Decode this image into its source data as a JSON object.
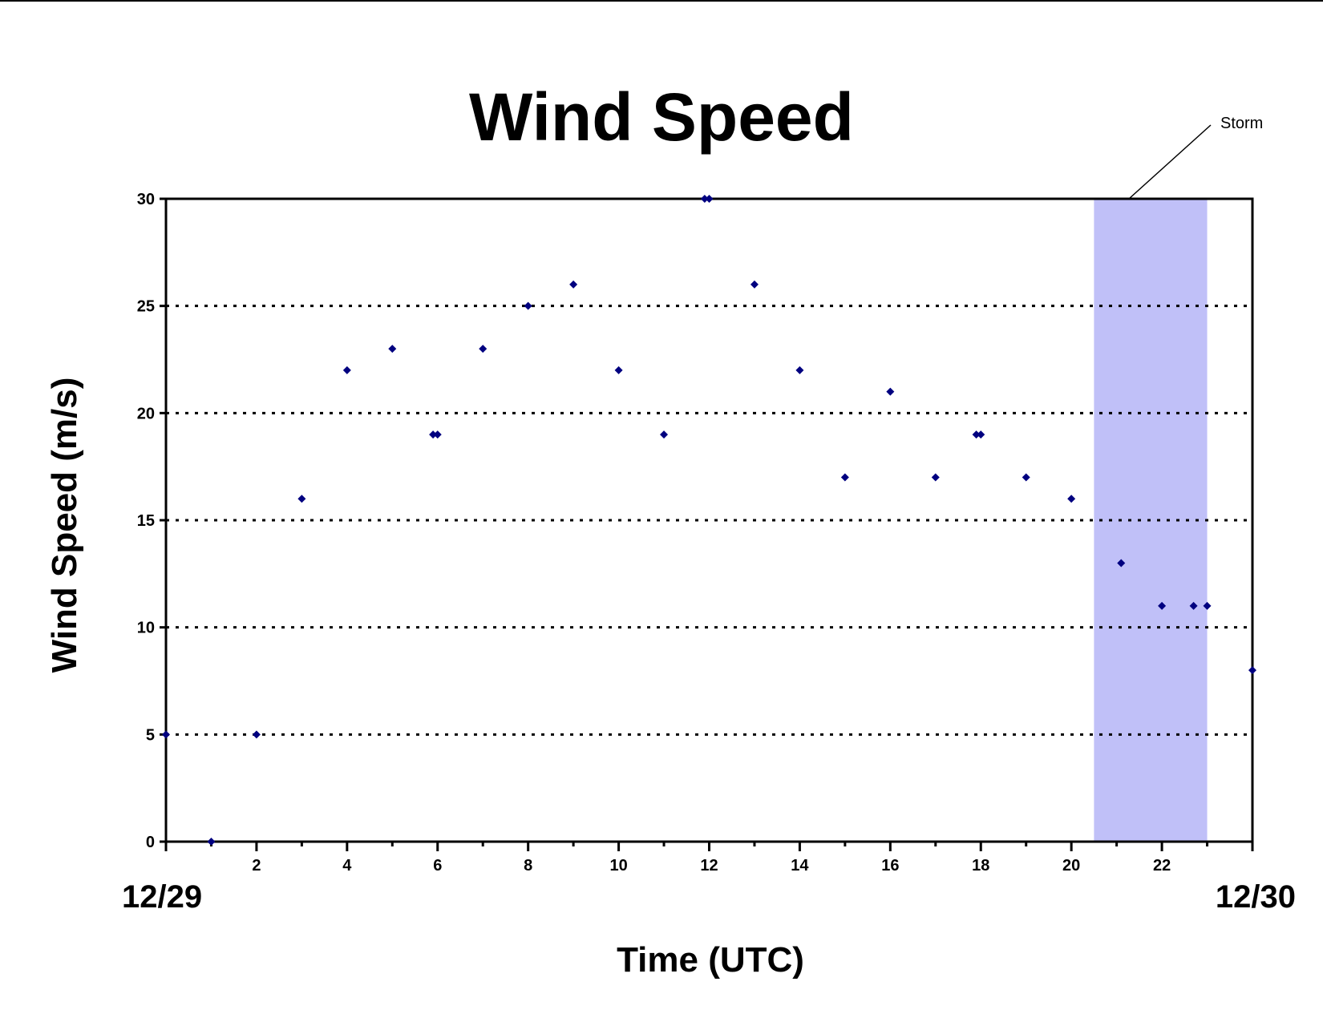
{
  "chart_data": {
    "type": "scatter",
    "title": "Wind Speed",
    "xlabel": "Time (UTC)",
    "ylabel": "Wind Speed (m/s)",
    "xlim": [
      0,
      24
    ],
    "ylim": [
      0,
      30
    ],
    "x_ticks": [
      2,
      4,
      6,
      8,
      10,
      12,
      14,
      16,
      18,
      20,
      22
    ],
    "y_ticks": [
      0,
      5,
      10,
      15,
      20,
      25,
      30
    ],
    "date_labels": {
      "start": "12/29",
      "end": "12/30"
    },
    "grid": "horizontal-dotted",
    "marker_color": "#000080",
    "storm": {
      "label": "Storm",
      "x_start": 20.5,
      "x_end": 23,
      "color": "#c0c0f8"
    },
    "points": [
      {
        "x": 0,
        "y": 5
      },
      {
        "x": 1,
        "y": 0
      },
      {
        "x": 2,
        "y": 5
      },
      {
        "x": 3,
        "y": 16
      },
      {
        "x": 4,
        "y": 22
      },
      {
        "x": 5,
        "y": 23
      },
      {
        "x": 5.9,
        "y": 19
      },
      {
        "x": 6,
        "y": 19
      },
      {
        "x": 7,
        "y": 23
      },
      {
        "x": 8,
        "y": 25
      },
      {
        "x": 9,
        "y": 26
      },
      {
        "x": 10,
        "y": 22
      },
      {
        "x": 11,
        "y": 19
      },
      {
        "x": 11.9,
        "y": 30
      },
      {
        "x": 12,
        "y": 30
      },
      {
        "x": 13,
        "y": 26
      },
      {
        "x": 14,
        "y": 22
      },
      {
        "x": 15,
        "y": 17
      },
      {
        "x": 16,
        "y": 21
      },
      {
        "x": 17,
        "y": 17
      },
      {
        "x": 17.9,
        "y": 19
      },
      {
        "x": 18,
        "y": 19
      },
      {
        "x": 19,
        "y": 17
      },
      {
        "x": 20,
        "y": 16
      },
      {
        "x": 21.1,
        "y": 13
      },
      {
        "x": 22,
        "y": 11
      },
      {
        "x": 22.7,
        "y": 11
      },
      {
        "x": 23,
        "y": 11
      },
      {
        "x": 24,
        "y": 8
      }
    ]
  }
}
